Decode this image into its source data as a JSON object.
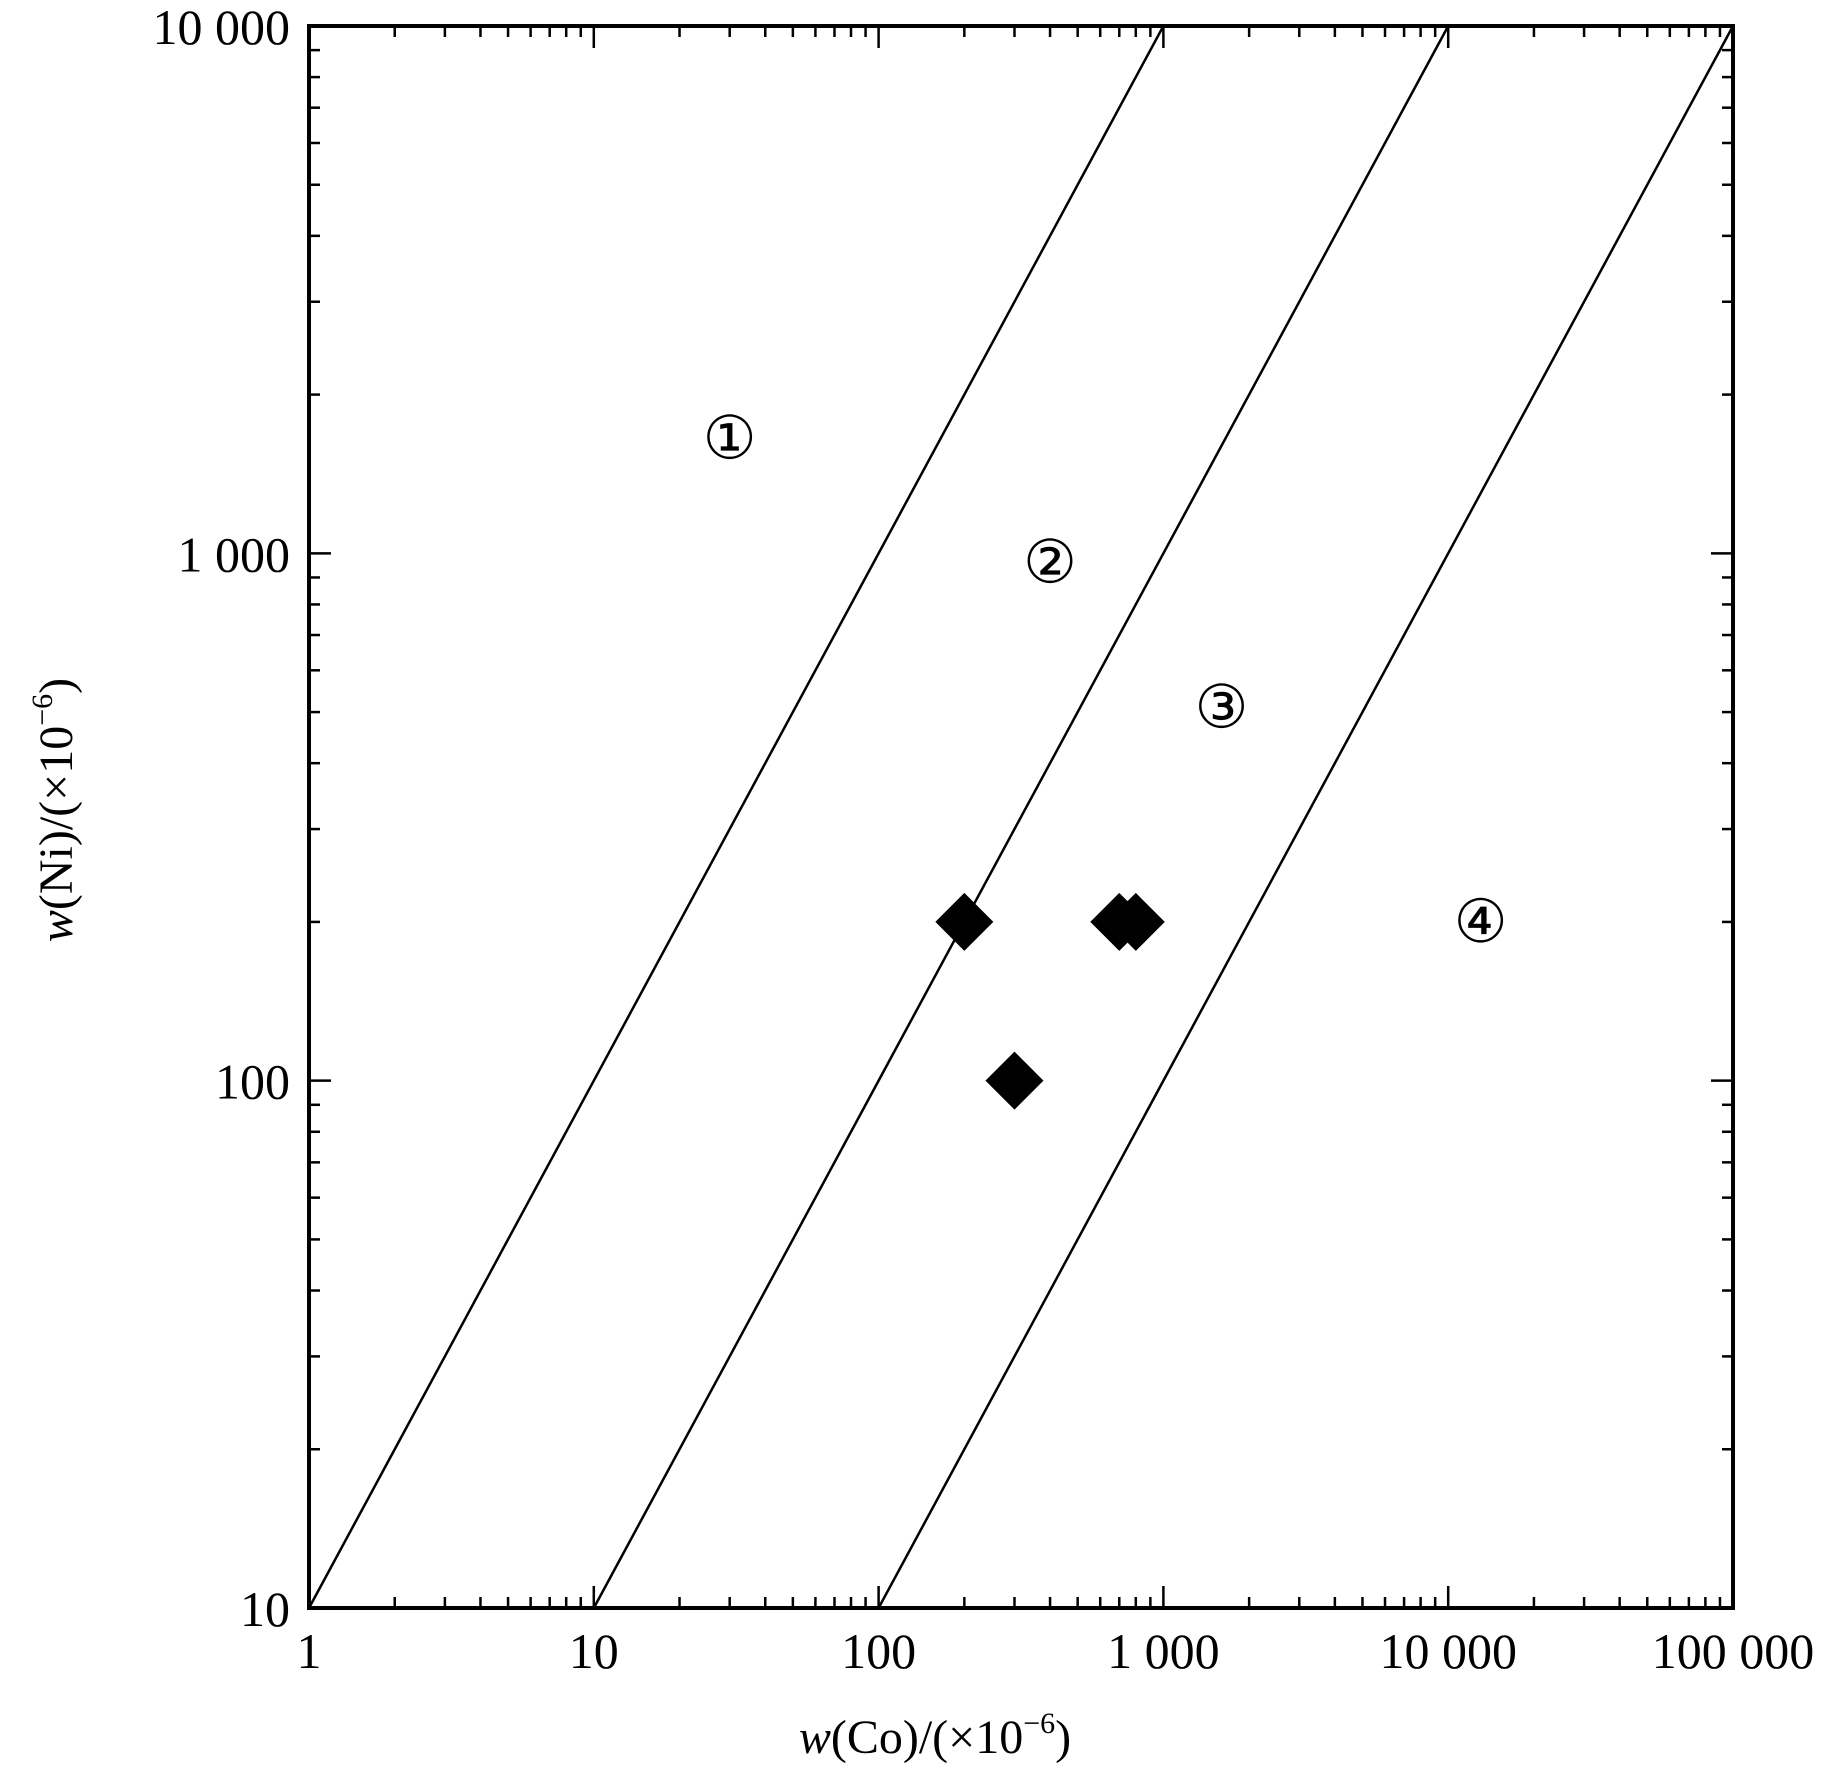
{
  "chart_data": {
    "type": "scatter",
    "x_scale": "log",
    "y_scale": "log",
    "xlim": [
      1,
      100000
    ],
    "ylim": [
      10,
      10000
    ],
    "x_ticks": [
      {
        "value": 1,
        "label": "1"
      },
      {
        "value": 10,
        "label": "10"
      },
      {
        "value": 100,
        "label": "100"
      },
      {
        "value": 1000,
        "label": "1 000"
      },
      {
        "value": 10000,
        "label": "10 000"
      },
      {
        "value": 100000,
        "label": "100 000"
      }
    ],
    "y_ticks": [
      {
        "value": 10,
        "label": "10"
      },
      {
        "value": 100,
        "label": "100"
      },
      {
        "value": 1000,
        "label": "1 000"
      },
      {
        "value": 10000,
        "label": "10 000"
      }
    ],
    "xlabel": {
      "italic": "w",
      "rest": "(Co)/(×10",
      "sup": "−6",
      "close": ")"
    },
    "ylabel": {
      "italic": "w",
      "rest": "(Ni)/(×10",
      "sup": "−6",
      "close": ")"
    },
    "grid": false,
    "boundary_lines": [
      {
        "x": [
          1,
          1000
        ],
        "y": [
          10,
          10000
        ]
      },
      {
        "x": [
          10,
          10000
        ],
        "y": [
          10,
          10000
        ]
      },
      {
        "x": [
          100,
          100000
        ],
        "y": [
          10,
          10000
        ]
      }
    ],
    "region_labels": [
      {
        "text": "①",
        "x": 30,
        "y": 1650
      },
      {
        "text": "②",
        "x": 400,
        "y": 960
      },
      {
        "text": "③",
        "x": 1600,
        "y": 510
      },
      {
        "text": "④",
        "x": 13000,
        "y": 200
      }
    ],
    "points": [
      {
        "x": 200,
        "y": 200
      },
      {
        "x": 700,
        "y": 200
      },
      {
        "x": 800,
        "y": 200
      },
      {
        "x": 300,
        "y": 100
      }
    ],
    "marker": "diamond",
    "marker_color": "#000000"
  }
}
